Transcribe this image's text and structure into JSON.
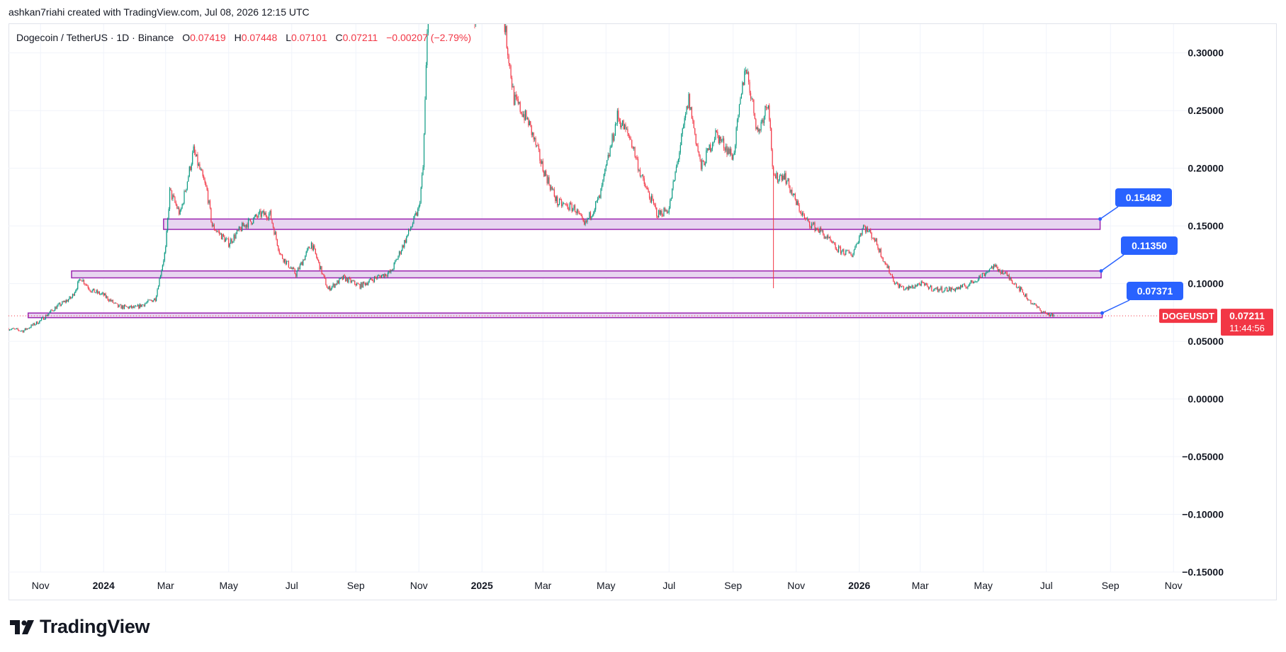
{
  "credit": "ashkan7riahi created with TradingView.com, Jul 08, 2026 12:15 UTC",
  "legend": {
    "symbol": "Dogecoin / TetherUS · 1D · Binance",
    "o_label": "O",
    "o_value": "0.07419",
    "h_label": "H",
    "h_value": "0.07448",
    "l_label": "L",
    "l_value": "0.07101",
    "c_label": "C",
    "c_value": "0.07211",
    "change": "−0.00207 (−2.79%)"
  },
  "logo": {
    "text": "TradingView",
    "icon": "tradingview-logo-icon"
  },
  "colors": {
    "up": "#089981",
    "down": "#f23645",
    "zone_fill": "#e7d5f0",
    "zone_border": "#9c27b0",
    "callout": "#2962ff"
  },
  "chart_data": {
    "type": "candlestick",
    "title": "Dogecoin / TetherUS · 1D · Binance",
    "x_axis": {
      "ticks": [
        "Nov",
        "2024",
        "Mar",
        "May",
        "Jul",
        "Sep",
        "Nov",
        "2025",
        "Mar",
        "May",
        "Jul",
        "Sep",
        "Nov",
        "2026",
        "Mar",
        "May",
        "Jul",
        "Sep",
        "Nov"
      ],
      "bold_ticks": [
        "2024",
        "2025",
        "2026"
      ],
      "range": [
        "2023-10-01",
        "2026-12-01"
      ]
    },
    "y_axis": {
      "ticks": [
        "0.30000",
        "0.25000",
        "0.20000",
        "0.15000",
        "0.10000",
        "0.05000",
        "0.00000",
        "−0.05000",
        "−0.10000",
        "−0.15000"
      ],
      "range": [
        -0.15,
        0.325
      ]
    },
    "grid": true,
    "series": [
      {
        "name": "DOGEUSDT",
        "close_points": [
          [
            "2023-10-01",
            0.061
          ],
          [
            "2023-10-15",
            0.059
          ],
          [
            "2023-11-01",
            0.068
          ],
          [
            "2023-11-15",
            0.079
          ],
          [
            "2023-12-01",
            0.088
          ],
          [
            "2023-12-10",
            0.105
          ],
          [
            "2023-12-20",
            0.094
          ],
          [
            "2024-01-01",
            0.09
          ],
          [
            "2024-01-15",
            0.08
          ],
          [
            "2024-02-01",
            0.079
          ],
          [
            "2024-02-20",
            0.087
          ],
          [
            "2024-03-01",
            0.13
          ],
          [
            "2024-03-05",
            0.18
          ],
          [
            "2024-03-15",
            0.16
          ],
          [
            "2024-03-28",
            0.215
          ],
          [
            "2024-04-10",
            0.18
          ],
          [
            "2024-04-15",
            0.15
          ],
          [
            "2024-05-01",
            0.135
          ],
          [
            "2024-05-15",
            0.15
          ],
          [
            "2024-06-01",
            0.16
          ],
          [
            "2024-06-10",
            0.16
          ],
          [
            "2024-06-20",
            0.125
          ],
          [
            "2024-07-05",
            0.108
          ],
          [
            "2024-07-20",
            0.135
          ],
          [
            "2024-08-05",
            0.095
          ],
          [
            "2024-08-20",
            0.105
          ],
          [
            "2024-09-05",
            0.098
          ],
          [
            "2024-09-20",
            0.105
          ],
          [
            "2024-10-05",
            0.11
          ],
          [
            "2024-10-20",
            0.14
          ],
          [
            "2024-11-01",
            0.165
          ],
          [
            "2024-11-05",
            0.2
          ],
          [
            "2024-11-12",
            0.4
          ],
          [
            "2024-12-08",
            0.46
          ],
          [
            "2024-12-25",
            0.33
          ],
          [
            "2025-01-15",
            0.38
          ],
          [
            "2025-02-01",
            0.26
          ],
          [
            "2025-02-15",
            0.24
          ],
          [
            "2025-03-01",
            0.2
          ],
          [
            "2025-03-15",
            0.17
          ],
          [
            "2025-04-01",
            0.165
          ],
          [
            "2025-04-10",
            0.15
          ],
          [
            "2025-04-25",
            0.175
          ],
          [
            "2025-05-12",
            0.245
          ],
          [
            "2025-05-25",
            0.225
          ],
          [
            "2025-06-05",
            0.19
          ],
          [
            "2025-06-20",
            0.16
          ],
          [
            "2025-07-01",
            0.165
          ],
          [
            "2025-07-20",
            0.26
          ],
          [
            "2025-08-01",
            0.2
          ],
          [
            "2025-08-15",
            0.23
          ],
          [
            "2025-09-01",
            0.21
          ],
          [
            "2025-09-13",
            0.29
          ],
          [
            "2025-09-25",
            0.23
          ],
          [
            "2025-10-05",
            0.26
          ],
          [
            "2025-10-10",
            0.19
          ],
          [
            "2025-10-20",
            0.195
          ],
          [
            "2025-11-01",
            0.17
          ],
          [
            "2025-11-10",
            0.155
          ],
          [
            "2025-11-25",
            0.145
          ],
          [
            "2025-12-10",
            0.13
          ],
          [
            "2025-12-25",
            0.125
          ],
          [
            "2026-01-05",
            0.15
          ],
          [
            "2026-01-15",
            0.14
          ],
          [
            "2026-01-25",
            0.12
          ],
          [
            "2026-02-05",
            0.1
          ],
          [
            "2026-02-15",
            0.095
          ],
          [
            "2026-03-01",
            0.1
          ],
          [
            "2026-03-15",
            0.095
          ],
          [
            "2026-04-01",
            0.095
          ],
          [
            "2026-04-15",
            0.098
          ],
          [
            "2026-05-01",
            0.108
          ],
          [
            "2026-05-10",
            0.115
          ],
          [
            "2026-05-20",
            0.11
          ],
          [
            "2026-06-01",
            0.1
          ],
          [
            "2026-06-15",
            0.085
          ],
          [
            "2026-06-25",
            0.077
          ],
          [
            "2026-07-01",
            0.074
          ],
          [
            "2026-07-08",
            0.07211
          ]
        ],
        "last_price": "0.07211",
        "countdown": "11:44:56",
        "last_price_color": "#f23645"
      }
    ],
    "zones": [
      {
        "top": 0.156,
        "bottom": 0.147,
        "start": "2024-02-28",
        "end": "2026-08-22",
        "label": "0.15482"
      },
      {
        "top": 0.111,
        "bottom": 0.105,
        "start": "2023-12-01",
        "end": "2026-08-23",
        "label": "0.11350"
      },
      {
        "top": 0.0745,
        "bottom": 0.0705,
        "start": "2023-10-20",
        "end": "2026-08-24",
        "label": "0.07371"
      }
    ],
    "notes": "Candlestick price chart reproduced as an approximate close-price path; prices above 0.325 are clipped by the visible pane."
  }
}
